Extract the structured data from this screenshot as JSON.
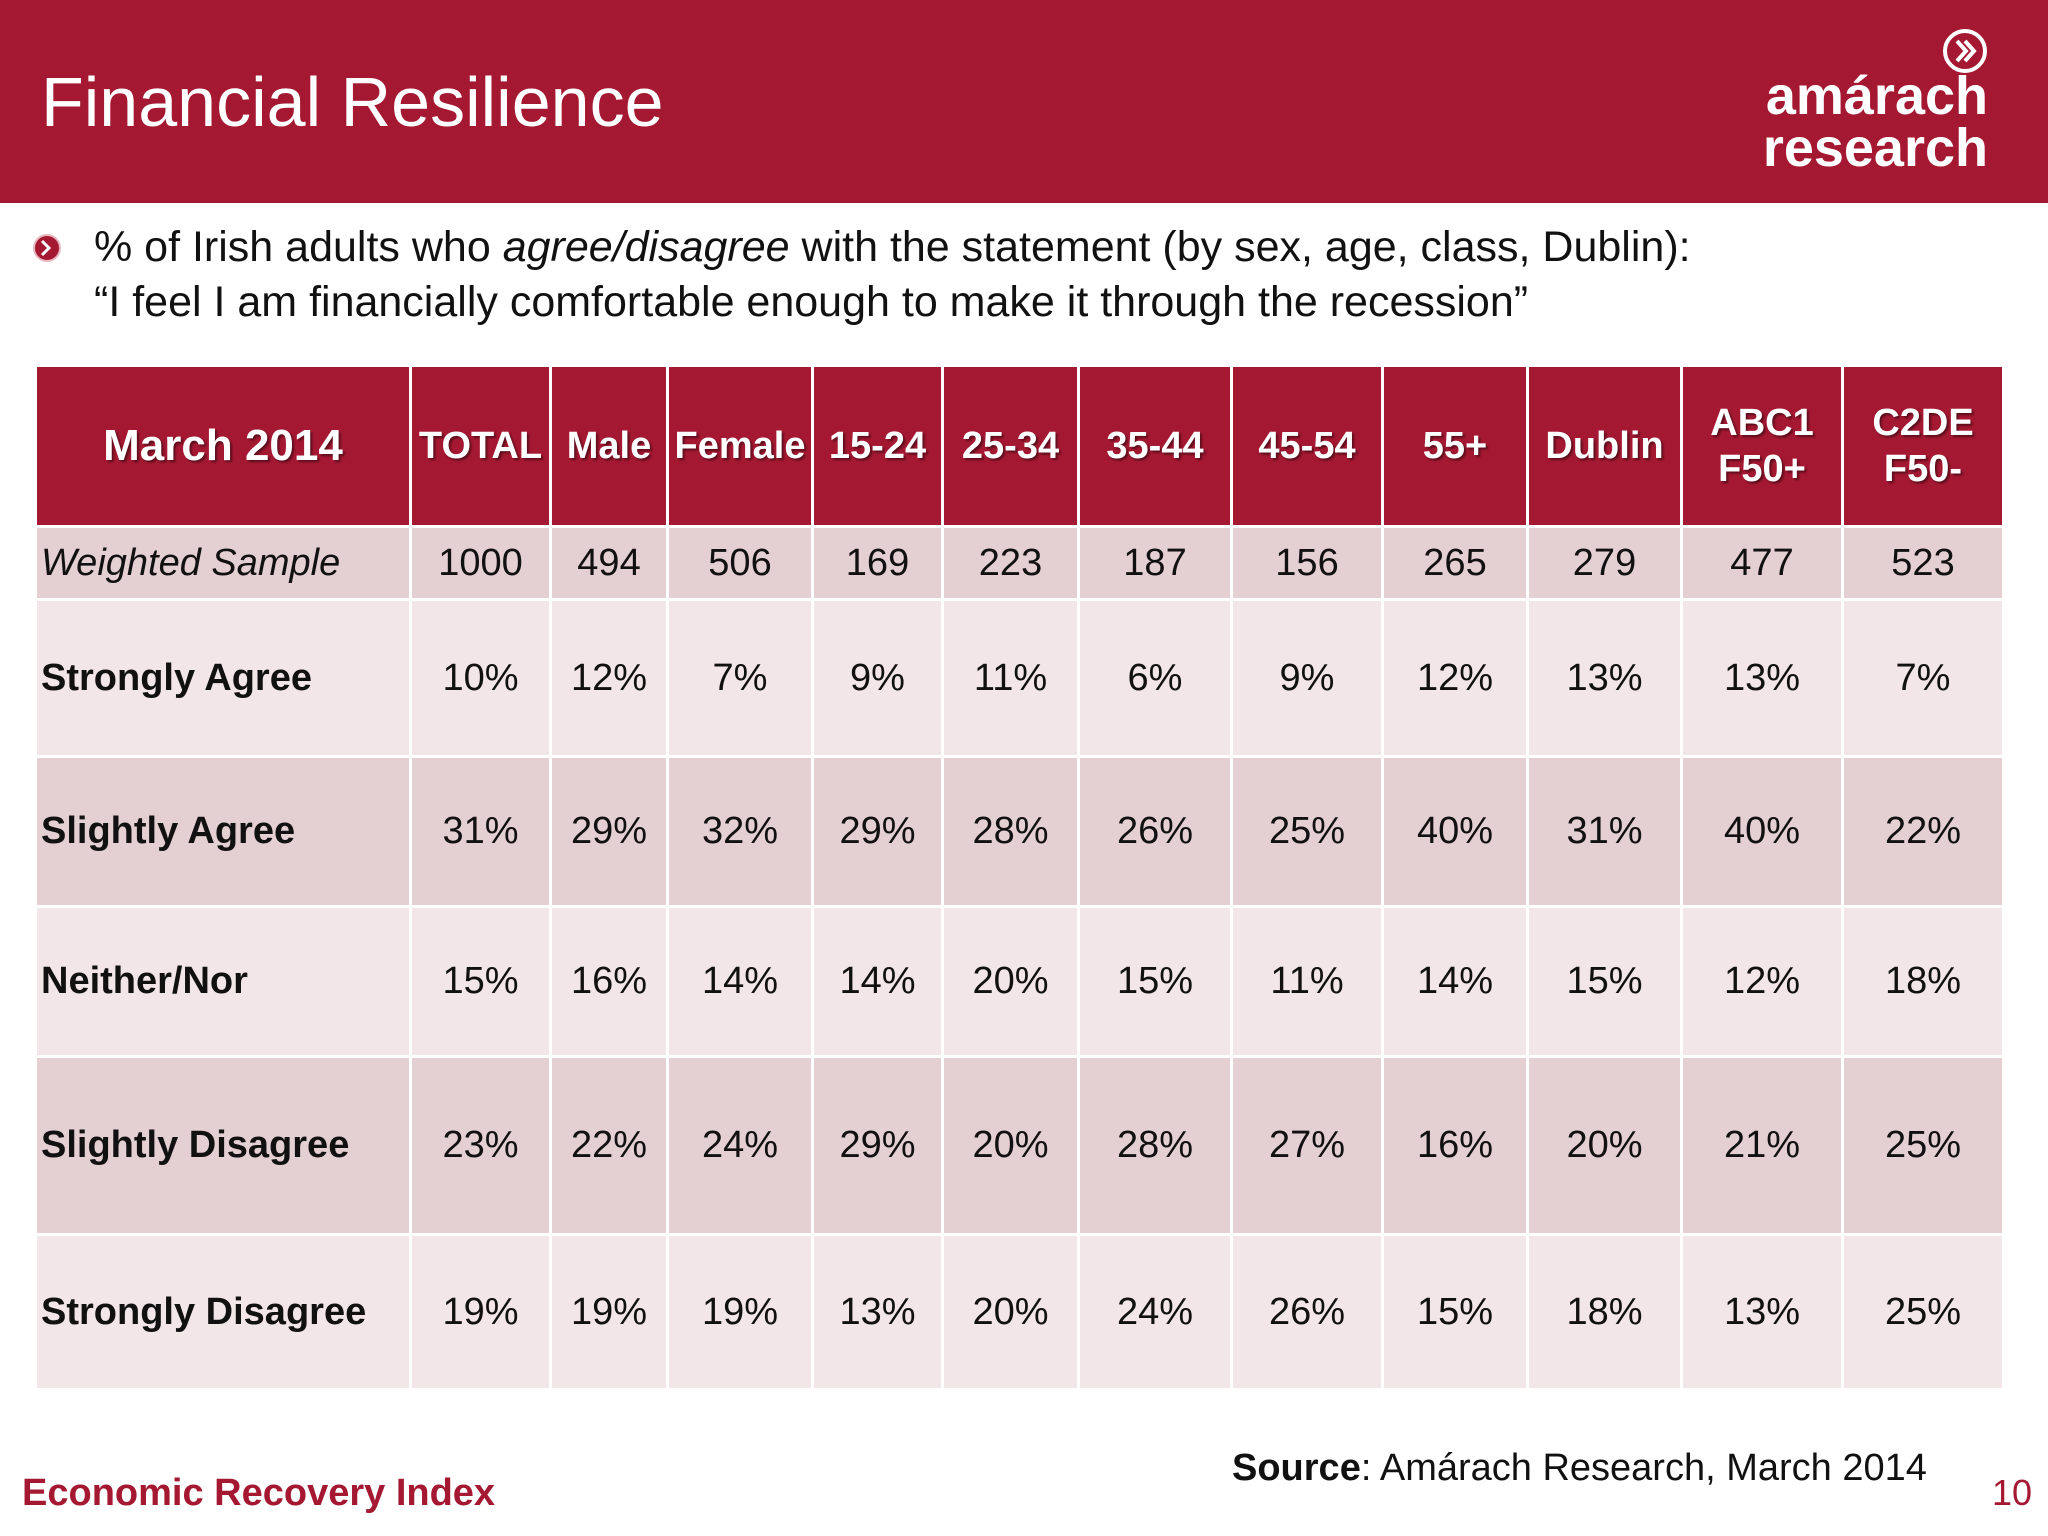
{
  "slide": {
    "title": "Financial Resilience",
    "logo": {
      "line1": "amárach",
      "line2": "research"
    },
    "subtitle": {
      "pre": "% of Irish adults who ",
      "italic": "agree/disagree",
      "post": " with the statement (by sex, age, class, Dublin):",
      "line2": "“I feel I am financially comfortable enough to make it through the recession”"
    }
  },
  "table": {
    "headers": [
      "March 2014",
      "TOTAL",
      "Male",
      "Female",
      "15-24",
      "25-34",
      "35-44",
      "45-54",
      "55+",
      "Dublin",
      "ABC1\nF50+",
      "C2DE\nF50-"
    ],
    "rows": [
      {
        "label": "Weighted Sample",
        "values": [
          "1000",
          "494",
          "506",
          "169",
          "223",
          "187",
          "156",
          "265",
          "279",
          "477",
          "523"
        ]
      },
      {
        "label": "Strongly Agree",
        "values": [
          "10%",
          "12%",
          "7%",
          "9%",
          "11%",
          "6%",
          "9%",
          "12%",
          "13%",
          "13%",
          "7%"
        ]
      },
      {
        "label": "Slightly Agree",
        "values": [
          "31%",
          "29%",
          "32%",
          "29%",
          "28%",
          "26%",
          "25%",
          "40%",
          "31%",
          "40%",
          "22%"
        ]
      },
      {
        "label": "Neither/Nor",
        "values": [
          "15%",
          "16%",
          "14%",
          "14%",
          "20%",
          "15%",
          "11%",
          "14%",
          "15%",
          "12%",
          "18%"
        ]
      },
      {
        "label": "Slightly Disagree",
        "values": [
          "23%",
          "22%",
          "24%",
          "29%",
          "20%",
          "28%",
          "27%",
          "16%",
          "20%",
          "21%",
          "25%"
        ]
      },
      {
        "label": "Strongly Disagree",
        "values": [
          "19%",
          "19%",
          "19%",
          "13%",
          "20%",
          "24%",
          "26%",
          "15%",
          "18%",
          "13%",
          "25%"
        ]
      }
    ]
  },
  "footer": {
    "left": "Economic Recovery Index",
    "source_label": "Source",
    "source_text": ": Amárach Research, March 2014",
    "page": "10"
  },
  "colors": {
    "brand": "#a51832",
    "row_dark": "#e4cfd3",
    "row_light": "#f3e6e8"
  }
}
